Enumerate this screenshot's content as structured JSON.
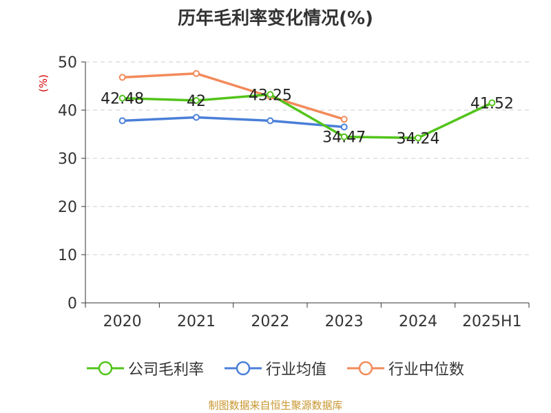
{
  "title": "历年毛利率变化情况(%)",
  "unit_label": "(%)",
  "source": "制图数据来自恒生聚源数据库",
  "chart_data": {
    "type": "line",
    "categories": [
      "2020",
      "2021",
      "2022",
      "2023",
      "2024",
      "2025H1"
    ],
    "ylim": [
      0,
      50
    ],
    "yticks": [
      0,
      10,
      20,
      30,
      40,
      50
    ],
    "grid": true,
    "legend_position": "bottom",
    "series": [
      {
        "name": "公司毛利率",
        "color": "#52c41a",
        "values": [
          42.48,
          42,
          43.25,
          34.47,
          34.24,
          41.52
        ],
        "labels": [
          "42.48",
          "42",
          "43.25",
          "34.47",
          "34.24",
          "41.52"
        ]
      },
      {
        "name": "行业均值",
        "color": "#4a7fd8",
        "values": [
          37.8,
          38.5,
          37.8,
          36.5,
          null,
          null
        ]
      },
      {
        "name": "行业中位数",
        "color": "#f28a5a",
        "values": [
          46.8,
          47.6,
          42.8,
          38.1,
          null,
          null
        ]
      }
    ]
  }
}
